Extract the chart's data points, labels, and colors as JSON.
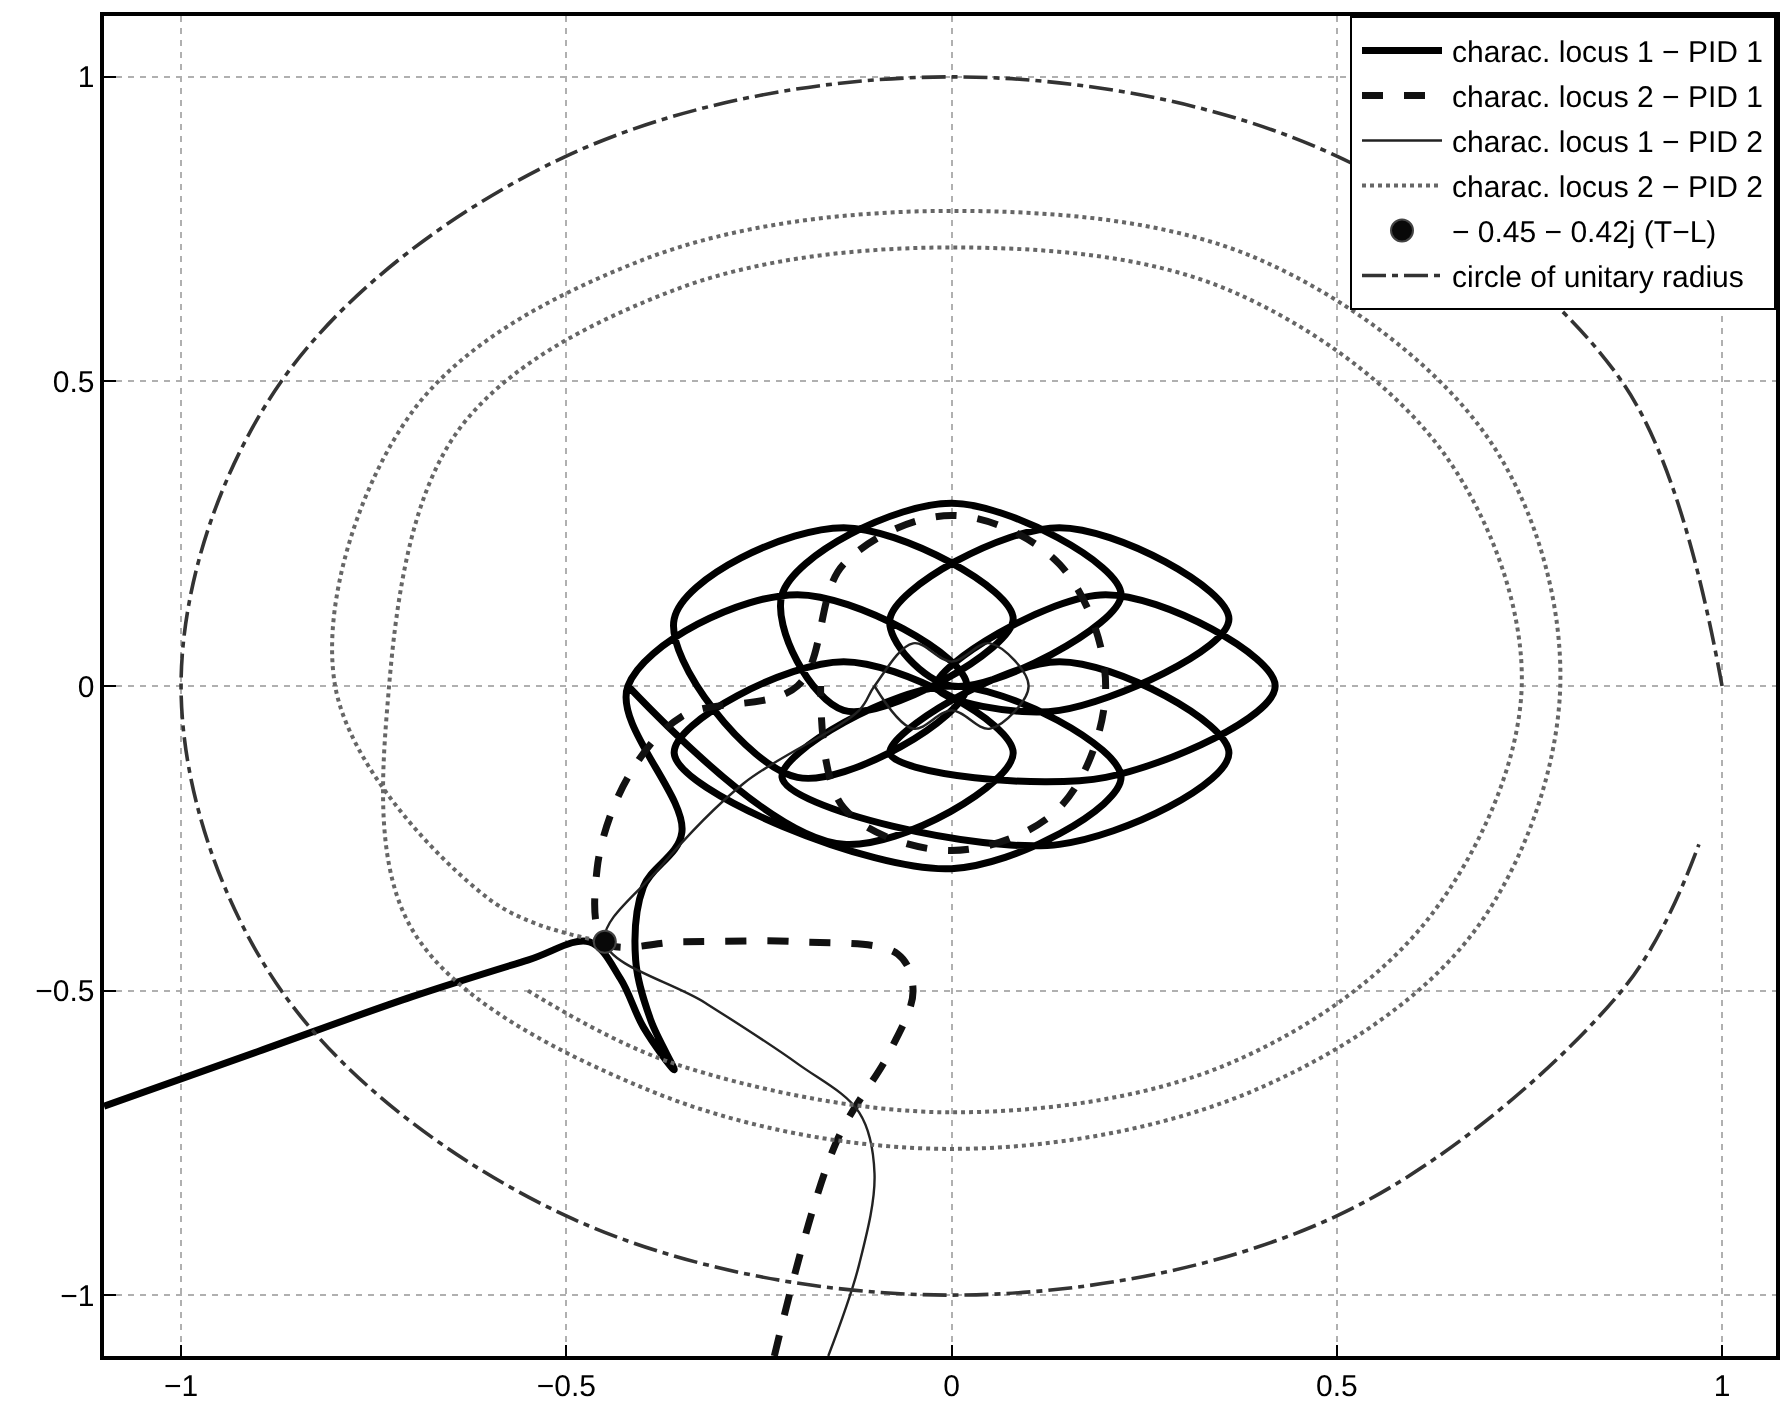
{
  "chart_data": {
    "type": "line",
    "xlim": [
      -1.1,
      1.07
    ],
    "ylim": [
      -1.1,
      1.1
    ],
    "xticks": [
      {
        "value": -1,
        "label": "−1"
      },
      {
        "value": -0.5,
        "label": "−0.5"
      },
      0,
      0.5,
      1
    ],
    "yticks": [
      {
        "value": -1,
        "label": "−1"
      },
      {
        "value": -0.5,
        "label": "−0.5"
      },
      0,
      0.5,
      1
    ],
    "grid": true,
    "legend": "top right",
    "series": [
      {
        "name": "charac. locus 1 − PID 1",
        "color": "#000000",
        "line_style": "solid",
        "x": [
          -1.1,
          -0.9,
          -0.7,
          -0.55,
          -0.47,
          -0.43,
          -0.4,
          -0.36,
          -0.39,
          -0.41,
          -0.4,
          -0.35,
          -0.42,
          -0.2,
          0.02,
          -0.2,
          -0.36,
          -0.14,
          0.08,
          -0.14,
          -0.22,
          0,
          0.22,
          0,
          -0.08,
          0.14,
          0.36,
          0.14,
          -0.02,
          0.2,
          0.42,
          0.2,
          -0.08,
          0.14,
          0.36,
          0.14,
          -0.22,
          0,
          0.22,
          0,
          -0.36,
          -0.14,
          0.08,
          -0.14,
          -0.42
        ],
        "values": [
          -0.69,
          -0.6,
          -0.51,
          -0.45,
          -0.42,
          -0.48,
          -0.56,
          -0.63,
          -0.55,
          -0.45,
          -0.33,
          -0.24,
          0,
          0.15,
          0,
          -0.15,
          0.11,
          0.26,
          0.11,
          -0.04,
          0.15,
          0.3,
          0.15,
          0,
          0.11,
          0.26,
          0.11,
          -0.04,
          0,
          0.15,
          0,
          -0.15,
          -0.11,
          0.04,
          -0.11,
          -0.26,
          -0.15,
          0,
          -0.15,
          -0.3,
          -0.11,
          0.04,
          -0.11,
          -0.26,
          0
        ]
      },
      {
        "name": "charac. locus 2 − PID 1",
        "color": "#111111",
        "line_style": "dashed",
        "x": [
          -0.23,
          -0.15,
          -0.08,
          -0.05,
          -0.07,
          -0.2,
          -0.35,
          -0.45,
          -0.46,
          -0.42,
          -0.35,
          -0.2,
          -0.14,
          0,
          0.14,
          0.2,
          0.14,
          0,
          -0.14,
          -0.17
        ],
        "values": [
          -1.1,
          -0.75,
          -0.6,
          -0.5,
          -0.44,
          -0.42,
          -0.42,
          -0.42,
          -0.3,
          -0.15,
          -0.05,
          0,
          0.2,
          0.28,
          0.2,
          0,
          -0.2,
          -0.27,
          -0.2,
          0
        ]
      },
      {
        "name": "charac. locus 1 − PID 2",
        "color": "#222222",
        "line_style": "solid",
        "x": [
          -0.16,
          -0.12,
          -0.1,
          -0.12,
          -0.2,
          -0.32,
          -0.45,
          -0.38,
          -0.27,
          -0.12,
          -0.1,
          -0.05,
          0,
          0.05,
          0.1,
          0.05,
          0,
          -0.05,
          -0.1
        ],
        "values": [
          -1.1,
          -0.95,
          -0.8,
          -0.7,
          -0.62,
          -0.52,
          -0.42,
          -0.3,
          -0.16,
          -0.04,
          0,
          0.07,
          0.04,
          0.07,
          0,
          -0.07,
          -0.04,
          -0.07,
          0
        ]
      },
      {
        "name": "charac. locus 2 − PID 2",
        "color": "#666666",
        "line_style": "dotted",
        "x": [
          -0.45,
          -0.6,
          -0.8,
          -0.7,
          -0.4,
          0,
          0.4,
          0.7,
          0.79,
          0.68,
          0.4,
          0,
          -0.4,
          -0.7,
          -0.73,
          -0.64,
          -0.36,
          0,
          0.36,
          0.64,
          0.74,
          0.62,
          0.36,
          0,
          -0.36,
          -0.55
        ],
        "values": [
          -0.42,
          -0.35,
          0,
          0.45,
          0.7,
          0.78,
          0.7,
          0.4,
          0,
          -0.4,
          -0.66,
          -0.76,
          -0.66,
          -0.4,
          0,
          0.42,
          0.65,
          0.72,
          0.65,
          0.38,
          0,
          -0.38,
          -0.62,
          -0.7,
          -0.62,
          -0.5
        ]
      },
      {
        "name": "− 0.45 − 0.42j (T−L)",
        "color": "#080808",
        "type": "scatter",
        "marker": "circle",
        "x": [
          -0.45
        ],
        "values": [
          -0.42
        ]
      },
      {
        "name": "circle of unitary radius",
        "color": "#333333",
        "line_style": "dashdot",
        "x": [
          1,
          0.87,
          0.5,
          0,
          -0.5,
          -0.87,
          -1,
          -0.87,
          -0.5,
          0,
          0.5,
          0.87,
          0.97
        ],
        "values": [
          0,
          0.5,
          0.87,
          1,
          0.87,
          0.5,
          0,
          -0.5,
          -0.87,
          -1,
          -0.87,
          -0.5,
          -0.26
        ]
      }
    ]
  }
}
